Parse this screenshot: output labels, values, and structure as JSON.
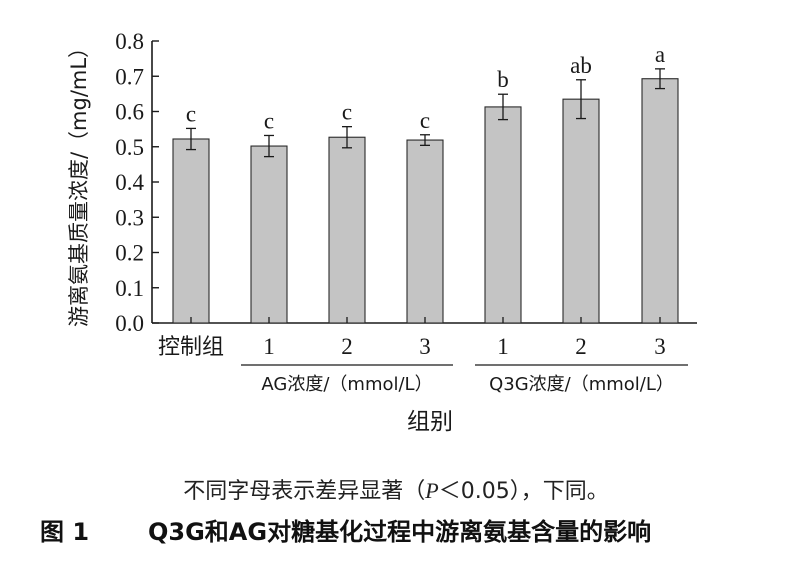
{
  "chart_data": {
    "type": "bar",
    "ylabel": "游离氨基质量浓度/（mg/mL）",
    "xlabel": "组别",
    "ylim": [
      0,
      0.8
    ],
    "yticks": [
      "0.0",
      "0.1",
      "0.2",
      "0.3",
      "0.4",
      "0.5",
      "0.6",
      "0.7",
      "0.8"
    ],
    "categories": [
      "控制组",
      "1",
      "2",
      "3",
      "1",
      "2",
      "3"
    ],
    "values": [
      0.522,
      0.502,
      0.527,
      0.519,
      0.613,
      0.635,
      0.693
    ],
    "errors": [
      0.03,
      0.03,
      0.03,
      0.015,
      0.036,
      0.055,
      0.028
    ],
    "significance": [
      "c",
      "c",
      "c",
      "c",
      "b",
      "ab",
      "a"
    ],
    "groups": [
      {
        "label": "AG浓度/（mmol/L）",
        "start": 1,
        "end": 3
      },
      {
        "label": "Q3G浓度/（mmol/L）",
        "start": 4,
        "end": 6
      }
    ],
    "bar_color": "#c4c4c4"
  },
  "note": {
    "before": "不同字母表示差异显著（",
    "p": "P",
    "after": "＜0.05），下同。"
  },
  "caption": {
    "number": "图 1",
    "title": "Q3G和AG对糖基化过程中游离氨基含量的影响"
  }
}
